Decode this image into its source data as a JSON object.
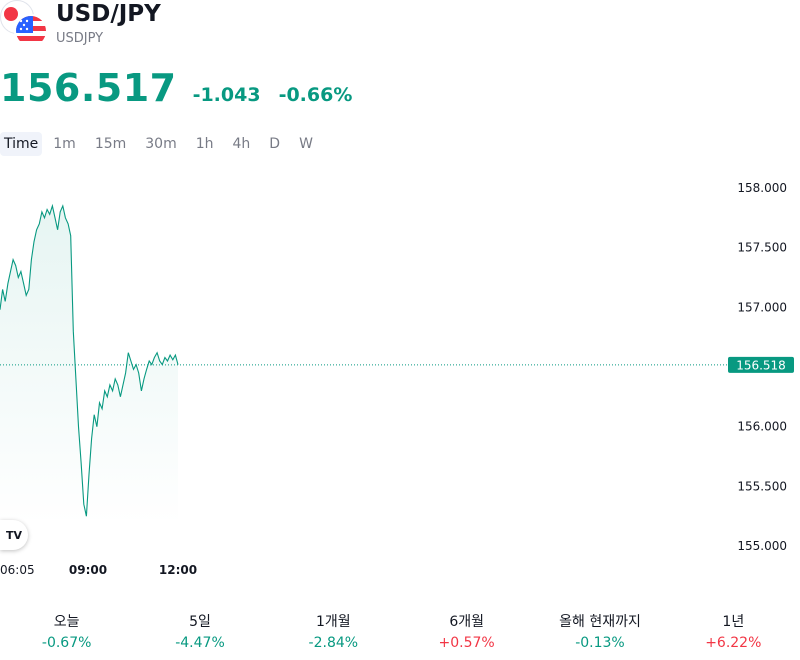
{
  "symbol": {
    "title": "USD/JPY",
    "ticker": "USDJPY"
  },
  "quote": {
    "price": "156.517",
    "change": "-1.043",
    "change_percent": "-0.66%"
  },
  "timeframes": [
    "Time",
    "1m",
    "15m",
    "30m",
    "1h",
    "4h",
    "D",
    "W"
  ],
  "timeframe_active": "Time",
  "colors": {
    "line": "#089981",
    "negative": "#089981",
    "positive": "#f23645"
  },
  "logo": {
    "text": "TV"
  },
  "chart_data": {
    "type": "area",
    "y_ticks": [
      "158.000",
      "157.500",
      "157.000",
      "156.500",
      "156.000",
      "155.500",
      "155.000"
    ],
    "y_tick_values": [
      158.0,
      157.5,
      157.0,
      156.5,
      156.0,
      155.5,
      155.0
    ],
    "x_ticks": [
      "06:05",
      "09:00",
      "12:00"
    ],
    "last_price_label": "156.518",
    "last_price": 156.518,
    "points": [
      [
        0,
        156.98
      ],
      [
        1,
        157.15
      ],
      [
        2,
        157.05
      ],
      [
        3,
        157.2
      ],
      [
        4,
        157.3
      ],
      [
        5,
        157.4
      ],
      [
        6,
        157.35
      ],
      [
        7,
        157.25
      ],
      [
        8,
        157.3
      ],
      [
        9,
        157.2
      ],
      [
        10,
        157.1
      ],
      [
        11,
        157.15
      ],
      [
        12,
        157.4
      ],
      [
        13,
        157.55
      ],
      [
        14,
        157.65
      ],
      [
        15,
        157.7
      ],
      [
        16,
        157.8
      ],
      [
        17,
        157.75
      ],
      [
        18,
        157.82
      ],
      [
        19,
        157.78
      ],
      [
        20,
        157.85
      ],
      [
        21,
        157.75
      ],
      [
        22,
        157.65
      ],
      [
        23,
        157.8
      ],
      [
        24,
        157.85
      ],
      [
        25,
        157.75
      ],
      [
        26,
        157.7
      ],
      [
        27,
        157.6
      ],
      [
        28,
        156.8
      ],
      [
        29,
        156.4
      ],
      [
        30,
        156.0
      ],
      [
        31,
        155.7
      ],
      [
        32,
        155.35
      ],
      [
        33,
        155.25
      ],
      [
        34,
        155.6
      ],
      [
        35,
        155.9
      ],
      [
        36,
        156.1
      ],
      [
        37,
        156.0
      ],
      [
        38,
        156.2
      ],
      [
        39,
        156.15
      ],
      [
        40,
        156.3
      ],
      [
        41,
        156.25
      ],
      [
        42,
        156.35
      ],
      [
        43,
        156.3
      ],
      [
        44,
        156.4
      ],
      [
        45,
        156.35
      ],
      [
        46,
        156.25
      ],
      [
        47,
        156.35
      ],
      [
        48,
        156.45
      ],
      [
        49,
        156.62
      ],
      [
        50,
        156.55
      ],
      [
        51,
        156.48
      ],
      [
        52,
        156.52
      ],
      [
        53,
        156.45
      ],
      [
        54,
        156.3
      ],
      [
        55,
        156.4
      ],
      [
        56,
        156.48
      ],
      [
        57,
        156.55
      ],
      [
        58,
        156.52
      ],
      [
        59,
        156.58
      ],
      [
        60,
        156.62
      ],
      [
        61,
        156.55
      ],
      [
        62,
        156.52
      ],
      [
        63,
        156.58
      ],
      [
        64,
        156.55
      ],
      [
        65,
        156.6
      ],
      [
        66,
        156.56
      ],
      [
        67,
        156.6
      ],
      [
        68,
        156.52
      ]
    ]
  },
  "performance": [
    {
      "label": "오늘",
      "value": "-0.67%",
      "dir": "neg"
    },
    {
      "label": "5일",
      "value": "-4.47%",
      "dir": "neg"
    },
    {
      "label": "1개월",
      "value": "-2.84%",
      "dir": "neg"
    },
    {
      "label": "6개월",
      "value": "+0.57%",
      "dir": "pos"
    },
    {
      "label": "올해 현재까지",
      "value": "-0.13%",
      "dir": "neg"
    },
    {
      "label": "1년",
      "value": "+6.22%",
      "dir": "pos"
    }
  ]
}
